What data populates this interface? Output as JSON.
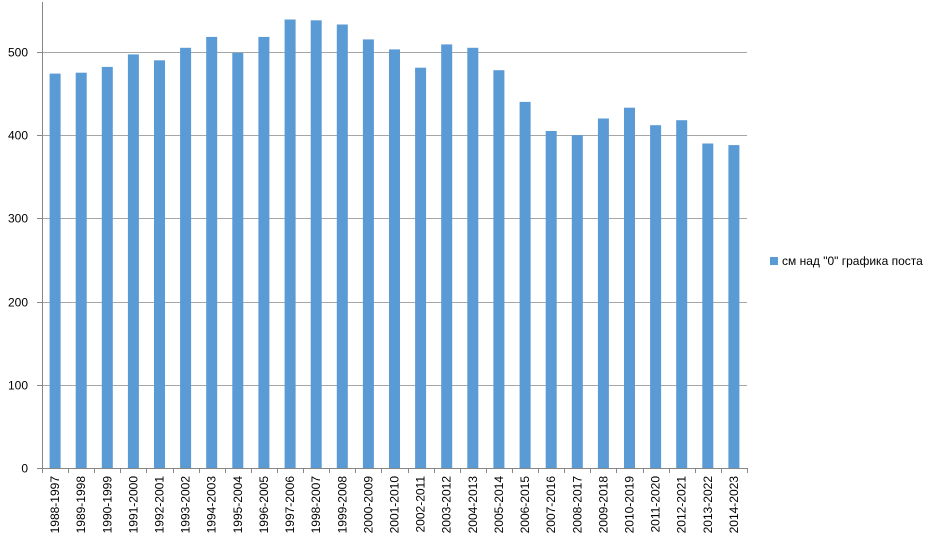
{
  "chart_data": {
    "type": "bar",
    "categories": [
      "1988-1997",
      "1989-1998",
      "1990-1999",
      "1991-2000",
      "1992-2001",
      "1993-2002",
      "1994-2003",
      "1995-2004",
      "1996-2005",
      "1997-2006",
      "1998-2007",
      "1999-2008",
      "2000-2009",
      "2001-2010",
      "2002-2011",
      "2003-2012",
      "2004-2013",
      "2005-2014",
      "2006-2015",
      "2007-2016",
      "2008-2017",
      "2009-2018",
      "2010-2019",
      "2011-2020",
      "2012-2021",
      "2013-2022",
      "2014-2023"
    ],
    "series": [
      {
        "name": "см над \"0\" графика поста",
        "values": [
          474,
          475,
          482,
          497,
          490,
          505,
          518,
          499,
          518,
          539,
          538,
          533,
          515,
          503,
          481,
          509,
          505,
          478,
          440,
          405,
          400,
          420,
          433,
          412,
          418,
          390,
          388
        ]
      }
    ],
    "yticks": [
      "0",
      "100",
      "200",
      "300",
      "400",
      "500"
    ],
    "ylim": [
      0,
      560
    ],
    "grid": true,
    "legend_position": "right",
    "colors": {
      "bar": "#5b9bd5",
      "grid": "#a6a6a6",
      "axis": "#868686"
    }
  }
}
